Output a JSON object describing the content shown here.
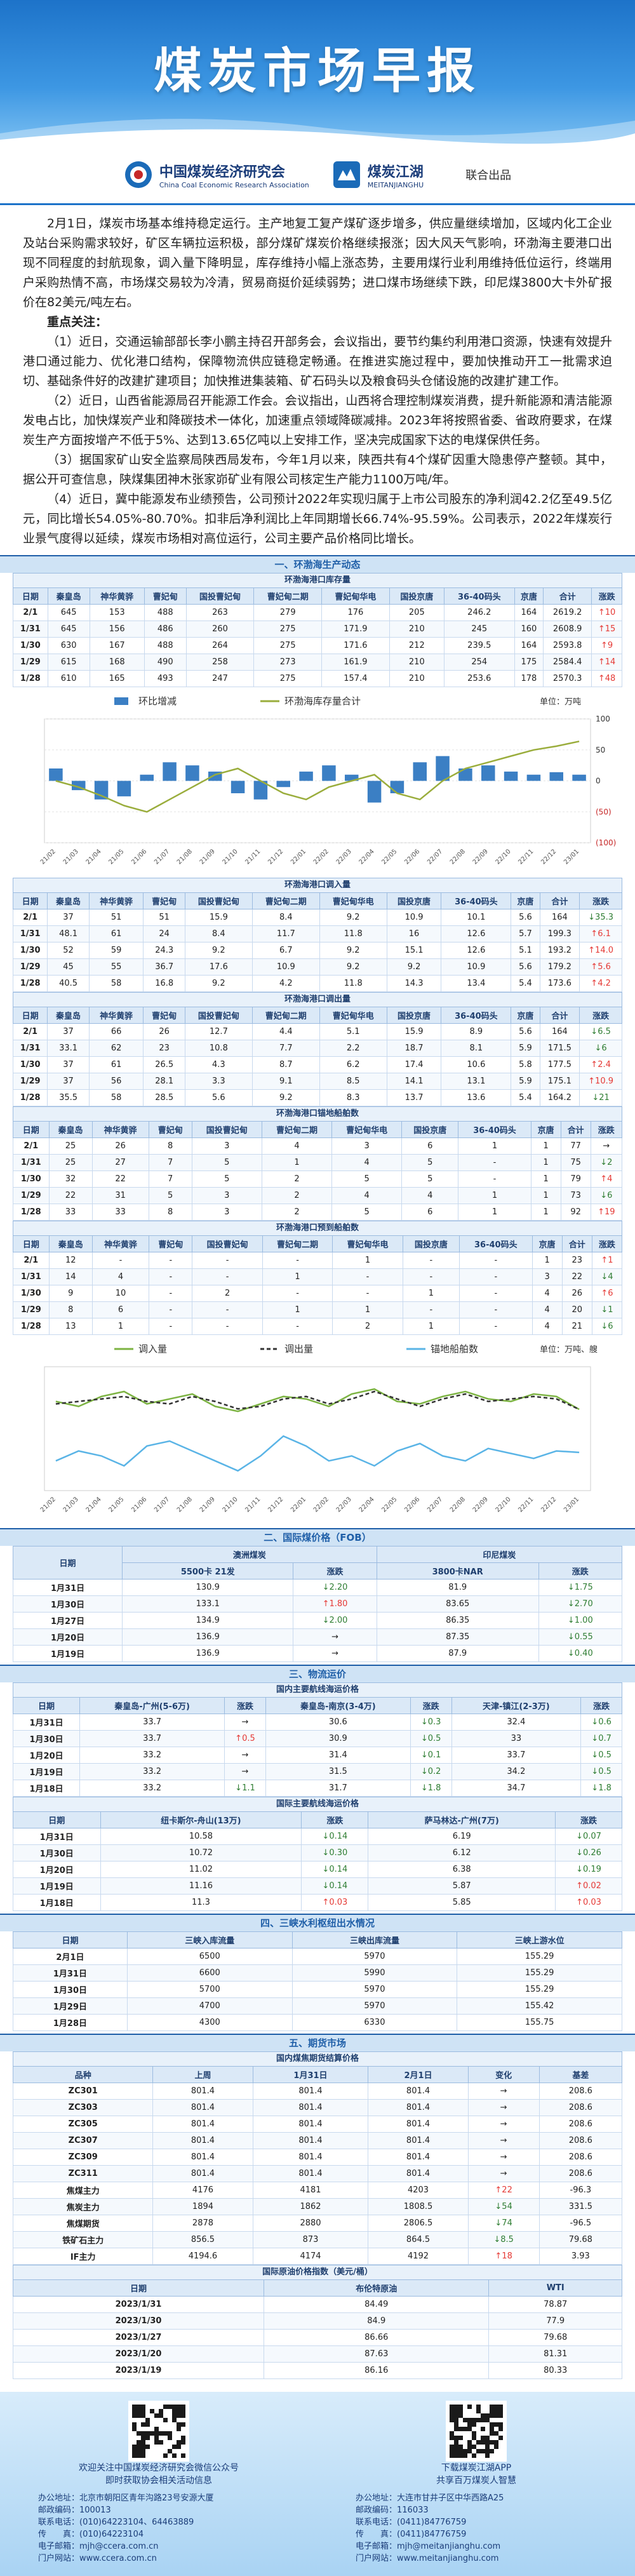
{
  "header": {
    "title": "煤炭市场早报",
    "org1_cn": "中国煤炭经济研究会",
    "org1_en": "China Coal Economic Research Association",
    "org2_cn": "煤炭江湖",
    "org2_en": "MEITANJIANGHU",
    "joint": "联合出品"
  },
  "summary": {
    "intro": "2月1日，煤炭市场基本维持稳定运行。主产地复工复产煤矿逐步增多，供应量继续增加，区域内化工企业及站台采购需求较好，矿区车辆拉运积极，部分煤矿煤炭价格继续报涨；因大风天气影响，环渤海主要港口出现不同程度的封航现象，调入量下降明显，库存维持小幅上涨态势，主要用煤行业利用维持低位运行，终端用户采购热情不高，市场煤交易较为冷清，贸易商挺价延续弱势；进口煤市场继续下跌，印尼煤3800大卡外矿报价在82美元/吨左右。",
    "focus_title": "重点关注：",
    "focus": [
      "（1）近日，交通运输部部长李小鹏主持召开部务会，会议指出，要节约集约利用港口资源，快速有效提升港口通过能力、优化港口结构，保障物流供应链稳定畅通。在推进实施过程中，要加快推动开工一批需求迫切、基础条件好的改建扩建项目；加快推进集装箱、矿石码头以及粮食码头仓储设施的改建扩建工作。",
      "（2）近日，山西省能源局召开能源工作会。会议指出，山西将合理控制煤炭消费，提升新能源和清洁能源发电占比，加快煤炭产业和降碳技术一体化，加速重点领域降碳减排。2023年将按照省委、省政府要求，在煤炭生产方面按增产不低于5%、达到13.65亿吨以上安排工作，坚决完成国家下达的电煤保供任务。",
      "（3）据国家矿山安全监察局陕西局发布，今年1月以来，陕西共有4个煤矿因重大隐患停产整顿。其中，据公开可查信息，陕煤集团神木张家峁矿业有限公司核定生产能力1100万吨/年。",
      "（4）近日，冀中能源发布业绩预告，公司预计2022年实现归属于上市公司股东的净利润42.2亿至49.5亿元，同比增长54.05%-80.70%。扣非后净利润比上年同期增长66.74%-95.59%。公司表示，2022年煤炭行业景气度得以延续，煤炭市场相对高位运行，公司主要产品价格同比增长。"
    ]
  },
  "section1": {
    "title": "一、环渤海生产动态",
    "tables": [
      {
        "title": "环渤海港口库存量",
        "columns": [
          "日期",
          "秦皇岛",
          "神华黄骅",
          "曹妃甸",
          "国投曹妃甸",
          "曹妃甸二期",
          "曹妃甸华电",
          "国投京唐",
          "36-40码头",
          "京唐",
          "合计",
          "涨跌"
        ],
        "rows": [
          [
            "2/1",
            645,
            153,
            488,
            263,
            279,
            176,
            205,
            246.2,
            164,
            2619.2,
            "↑10"
          ],
          [
            "1/31",
            645,
            156,
            486,
            260,
            275,
            171.9,
            210,
            245,
            160,
            2608.9,
            "↑15"
          ],
          [
            "1/30",
            630,
            167,
            488,
            264,
            275,
            171.6,
            212,
            239.5,
            164,
            2593.8,
            "↑9"
          ],
          [
            "1/29",
            615,
            168,
            490,
            258,
            273,
            161.9,
            210,
            254,
            175,
            2584.4,
            "↑14"
          ],
          [
            "1/28",
            610,
            165,
            493,
            247,
            275,
            157.4,
            210,
            253.6,
            178,
            2570.3,
            "↑48"
          ]
        ]
      },
      {
        "title": "环渤海港口调入量",
        "columns": [
          "日期",
          "秦皇岛",
          "神华黄骅",
          "曹妃甸",
          "国投曹妃甸",
          "曹妃甸二期",
          "曹妃甸华电",
          "国投京唐",
          "36-40码头",
          "京唐",
          "合计",
          "涨跌"
        ],
        "rows": [
          [
            "2/1",
            37,
            51,
            51,
            15.9,
            8.4,
            9.2,
            10.9,
            10.1,
            5.6,
            164,
            "↓35.3"
          ],
          [
            "1/31",
            48.1,
            61,
            24,
            8.4,
            11.7,
            11.8,
            16,
            12.6,
            5.7,
            199.3,
            "↑6.1"
          ],
          [
            "1/30",
            52,
            59,
            24.3,
            9.2,
            6.7,
            9.2,
            15.1,
            12.6,
            5.1,
            193.2,
            "↑14.0"
          ],
          [
            "1/29",
            45,
            55,
            36.7,
            17.6,
            10.9,
            9.2,
            9.2,
            10.9,
            5.6,
            179.2,
            "↑5.6"
          ],
          [
            "1/28",
            40.5,
            58,
            16.8,
            9.2,
            4.2,
            11.8,
            14.3,
            13.4,
            5.4,
            173.6,
            "↑4.2"
          ]
        ]
      },
      {
        "title": "环渤海港口调出量",
        "columns": [
          "日期",
          "秦皇岛",
          "神华黄骅",
          "曹妃甸",
          "国投曹妃甸",
          "曹妃甸二期",
          "曹妃甸华电",
          "国投京唐",
          "36-40码头",
          "京唐",
          "合计",
          "涨跌"
        ],
        "rows": [
          [
            "2/1",
            37,
            66,
            26,
            12.7,
            4.4,
            5.1,
            15.9,
            8.9,
            5.6,
            164,
            "↓6.5"
          ],
          [
            "1/31",
            33.1,
            62,
            23,
            10.8,
            7.7,
            2.2,
            18.7,
            8.1,
            5.9,
            171.5,
            "↓6"
          ],
          [
            "1/30",
            37,
            61,
            26.5,
            4.3,
            8.7,
            6.2,
            17.4,
            10.6,
            5.8,
            177.5,
            "↑2.4"
          ],
          [
            "1/29",
            37,
            56,
            28.1,
            3.3,
            9.1,
            8.5,
            14.1,
            13.1,
            5.9,
            175.1,
            "↑10.9"
          ],
          [
            "1/28",
            35.5,
            58,
            28.5,
            5.6,
            9.2,
            8.3,
            13.7,
            13.6,
            5.4,
            164.2,
            "↓21"
          ]
        ]
      },
      {
        "title": "环渤海港口锚地船舶数",
        "columns": [
          "日期",
          "秦皇岛",
          "神华黄骅",
          "曹妃甸",
          "国投曹妃甸",
          "曹妃甸二期",
          "曹妃甸华电",
          "国投京唐",
          "36-40码头",
          "京唐",
          "合计",
          "涨跌"
        ],
        "rows": [
          [
            "2/1",
            25,
            26,
            8,
            3,
            4,
            3,
            6,
            1,
            1,
            77,
            "→"
          ],
          [
            "1/31",
            25,
            27,
            7,
            5,
            1,
            4,
            5,
            "-",
            1,
            75,
            "↓2"
          ],
          [
            "1/30",
            32,
            22,
            7,
            5,
            2,
            5,
            5,
            "-",
            1,
            79,
            "↑4"
          ],
          [
            "1/29",
            22,
            31,
            5,
            3,
            2,
            4,
            4,
            1,
            1,
            73,
            "↓6"
          ],
          [
            "1/28",
            33,
            33,
            8,
            3,
            2,
            5,
            6,
            1,
            1,
            92,
            "↑19"
          ]
        ]
      },
      {
        "title": "环渤海港口预到船舶数",
        "columns": [
          "日期",
          "秦皇岛",
          "神华黄骅",
          "曹妃甸",
          "国投曹妃甸",
          "曹妃甸二期",
          "曹妃甸华电",
          "国投京唐",
          "36-40码头",
          "京唐",
          "合计",
          "涨跌"
        ],
        "rows": [
          [
            "2/1",
            12,
            "-",
            "-",
            "-",
            "-",
            1,
            "-",
            "-",
            1,
            23,
            "↑1"
          ],
          [
            "1/31",
            14,
            4,
            "-",
            "-",
            1,
            "-",
            "-",
            "-",
            3,
            22,
            "↓4"
          ],
          [
            "1/30",
            9,
            10,
            "-",
            2,
            "-",
            "-",
            1,
            "-",
            4,
            26,
            "↑6"
          ],
          [
            "1/29",
            8,
            6,
            "-",
            "-",
            1,
            1,
            "-",
            "-",
            4,
            20,
            "↓1"
          ],
          [
            "1/28",
            13,
            1,
            "-",
            "-",
            "-",
            2,
            1,
            "-",
            4,
            21,
            "↓6"
          ]
        ]
      }
    ]
  },
  "chart_data": [
    {
      "type": "combo",
      "unit": "单位：万吨",
      "categories": [
        "21/02",
        "21/03",
        "21/04",
        "21/05",
        "21/06",
        "21/07",
        "21/08",
        "21/09",
        "21/10",
        "21/11",
        "21/12",
        "22/01",
        "22/02",
        "22/03",
        "22/04",
        "22/05",
        "22/06",
        "22/07",
        "22/08",
        "22/09",
        "22/10",
        "22/11",
        "22/12",
        "23/01"
      ],
      "ylim": [
        1800,
        2800
      ],
      "y2lim": [
        -100,
        100
      ],
      "y2ticks": [
        100,
        50,
        0,
        {
          "value": -50,
          "label": "(50)"
        },
        {
          "value": -100,
          "label": "(100)"
        }
      ],
      "series": [
        {
          "name": "环比增减",
          "type": "bar",
          "axis": "y2",
          "color": "#3b7fc4",
          "values": [
            20,
            -15,
            -30,
            -25,
            10,
            30,
            25,
            15,
            -20,
            -30,
            -10,
            15,
            25,
            10,
            -35,
            -20,
            30,
            40,
            20,
            25,
            15,
            10,
            14,
            10
          ]
        },
        {
          "name": "环渤海库存量合计",
          "type": "line",
          "color": "#9aad3c",
          "values": [
            2300,
            2250,
            2180,
            2100,
            2050,
            2150,
            2250,
            2350,
            2400,
            2300,
            2200,
            2150,
            2250,
            2300,
            2350,
            2200,
            2150,
            2300,
            2400,
            2450,
            2500,
            2550,
            2580,
            2619.2
          ]
        }
      ]
    },
    {
      "type": "line",
      "unit": "单位：万吨、艘",
      "categories": [
        "21/02",
        "21/03",
        "21/04",
        "21/05",
        "21/06",
        "21/07",
        "21/08",
        "21/09",
        "21/10",
        "21/11",
        "21/12",
        "22/01",
        "22/02",
        "22/03",
        "22/04",
        "22/05",
        "22/06",
        "22/07",
        "22/08",
        "22/09",
        "22/10",
        "22/11",
        "22/12",
        "23/01"
      ],
      "ylim": [
        0,
        250
      ],
      "series": [
        {
          "name": "调入量",
          "color": "#7cb342",
          "values": [
            180,
            170,
            190,
            200,
            175,
            185,
            195,
            170,
            160,
            175,
            190,
            185,
            170,
            195,
            205,
            180,
            175,
            190,
            200,
            185,
            180,
            195,
            190,
            164
          ]
        },
        {
          "name": "调出量",
          "color": "#333333",
          "dash": true,
          "values": [
            175,
            180,
            185,
            190,
            180,
            175,
            190,
            180,
            165,
            170,
            185,
            190,
            175,
            185,
            200,
            185,
            170,
            185,
            195,
            180,
            185,
            190,
            185,
            164
          ]
        },
        {
          "name": "锚地船舶数",
          "color": "#5ab4e6",
          "values": [
            60,
            80,
            70,
            50,
            90,
            100,
            80,
            60,
            40,
            70,
            110,
            90,
            60,
            70,
            50,
            80,
            95,
            70,
            60,
            85,
            75,
            65,
            80,
            77
          ]
        }
      ]
    }
  ],
  "section2": {
    "title": "二、国际煤价格（FOB）",
    "tables": [
      {
        "groups": [
          "澳洲煤炭",
          "印尼煤炭"
        ],
        "columns": [
          "日期",
          "5500卡 21发",
          "涨跌",
          "3800卡NAR",
          "涨跌"
        ],
        "rows": [
          [
            "1月31日",
            130.9,
            "↓2.20",
            81.9,
            "↓1.75"
          ],
          [
            "1月30日",
            133.1,
            "↑1.80",
            83.65,
            "↓2.70"
          ],
          [
            "1月27日",
            134.9,
            "↓2.00",
            86.35,
            "↓1.00"
          ],
          [
            "1月20日",
            136.9,
            "→",
            87.35,
            "↓0.55"
          ],
          [
            "1月19日",
            136.9,
            "→",
            87.9,
            "↓0.40"
          ]
        ]
      }
    ]
  },
  "section3": {
    "title": "三、物流运价",
    "tables": [
      {
        "title": "国内主要航线海运价格",
        "columns": [
          "日期",
          "秦皇岛-广州(5-6万)",
          "涨跌",
          "秦皇岛-南京(3-4万)",
          "涨跌",
          "天津-镇江(2-3万)",
          "涨跌"
        ],
        "rows": [
          [
            "1月31日",
            33.7,
            "→",
            30.6,
            "↓0.3",
            32.4,
            "↓0.6"
          ],
          [
            "1月30日",
            33.7,
            "↑0.5",
            30.9,
            "↓0.5",
            33,
            "↓0.7"
          ],
          [
            "1月20日",
            33.2,
            "→",
            31.4,
            "↓0.1",
            33.7,
            "↓0.5"
          ],
          [
            "1月19日",
            33.2,
            "→",
            31.5,
            "↓0.2",
            34.2,
            "↓0.5"
          ],
          [
            "1月18日",
            33.2,
            "↓1.1",
            31.7,
            "↓1.8",
            34.7,
            "↓1.8"
          ]
        ]
      },
      {
        "title": "国际主要航线海运价格",
        "columns": [
          "日期",
          "纽卡斯尔-舟山(13万)",
          "涨跌",
          "萨马林达-广州(7万)",
          "涨跌"
        ],
        "rows": [
          [
            "1月31日",
            10.58,
            "↓0.14",
            6.19,
            "↓0.07"
          ],
          [
            "1月30日",
            10.72,
            "↓0.30",
            6.12,
            "↓0.26"
          ],
          [
            "1月20日",
            11.02,
            "↓0.14",
            6.38,
            "↓0.19"
          ],
          [
            "1月19日",
            11.16,
            "↓0.14",
            5.87,
            "↑0.02"
          ],
          [
            "1月18日",
            11.3,
            "↑0.03",
            5.85,
            "↑0.03"
          ]
        ]
      }
    ]
  },
  "section4": {
    "title": "四、三峡水利枢纽出水情况",
    "tables": [
      {
        "columns": [
          "日期",
          "三峡入库流量",
          "三峡出库流量",
          "三峡上游水位"
        ],
        "rows": [
          [
            "2月1日",
            6500,
            5970,
            155.29
          ],
          [
            "1月31日",
            6600,
            5990,
            155.29
          ],
          [
            "1月30日",
            5700,
            5970,
            155.29
          ],
          [
            "1月29日",
            4700,
            5970,
            155.42
          ],
          [
            "1月28日",
            4300,
            6330,
            155.75
          ]
        ]
      }
    ]
  },
  "section5": {
    "title": "五、期货市场",
    "tables": [
      {
        "title": "国内煤焦期货结算价格",
        "columns": [
          "品种",
          "上周",
          "1月31日",
          "2月1日",
          "变化",
          "基差"
        ],
        "rows": [
          [
            "ZC301",
            801.4,
            801.4,
            801.4,
            "→",
            208.6
          ],
          [
            "ZC303",
            801.4,
            801.4,
            801.4,
            "→",
            208.6
          ],
          [
            "ZC305",
            801.4,
            801.4,
            801.4,
            "→",
            208.6
          ],
          [
            "ZC307",
            801.4,
            801.4,
            801.4,
            "→",
            208.6
          ],
          [
            "ZC309",
            801.4,
            801.4,
            801.4,
            "→",
            208.6
          ],
          [
            "ZC311",
            801.4,
            801.4,
            801.4,
            "→",
            208.6
          ],
          [
            "焦煤主力",
            4176,
            4181,
            4203,
            "↑22",
            -96.3
          ],
          [
            "焦炭主力",
            1894,
            1862,
            1808.5,
            "↓54",
            331.5
          ],
          [
            "焦煤期货",
            2878,
            2880,
            2806.5,
            "↓74",
            -96.5
          ],
          [
            "铁矿石主力",
            856.5,
            873,
            864.5,
            "↓8.5",
            79.68
          ],
          [
            "IF主力",
            4194.6,
            4174,
            4192,
            "↑18",
            3.93
          ]
        ]
      },
      {
        "title": "国际原油价格指数（美元/桶）",
        "columns": [
          "日期",
          "布伦特原油",
          "WTI"
        ],
        "rows": [
          [
            "2023/1/31",
            84.49,
            78.87
          ],
          [
            "2023/1/30",
            84.9,
            77.9
          ],
          [
            "2023/1/27",
            86.66,
            79.68
          ],
          [
            "2023/1/20",
            87.63,
            81.31
          ],
          [
            "2023/1/19",
            86.16,
            80.33
          ]
        ]
      }
    ]
  },
  "footer": {
    "left": {
      "caption1": "欢迎关注中国煤炭经济研究会微信公众号",
      "caption2": "即时获取协会相关活动信息",
      "lines": [
        "办公地址：北京市朝阳区青年沟路23号安源大厦",
        "邮政编码：100013",
        "联系电话：(010)64223104、64463889",
        "传　　真：(010)64223104",
        "电子邮箱：mjh@ccera.com.cn",
        "门户网站：www.ccera.com.cn"
      ]
    },
    "right": {
      "caption1": "下载煤炭江湖APP",
      "caption2": "共享百万煤炭人智慧",
      "lines": [
        "办公地址：大连市甘井子区中华西路A25",
        "邮政编码：116033",
        "联系电话：(0411)84776759",
        "传　　真：(0411)84776759",
        "电子邮箱：mjh@meitanjianghu.com",
        "门户网站：www.meitanjianghu.com"
      ]
    }
  }
}
